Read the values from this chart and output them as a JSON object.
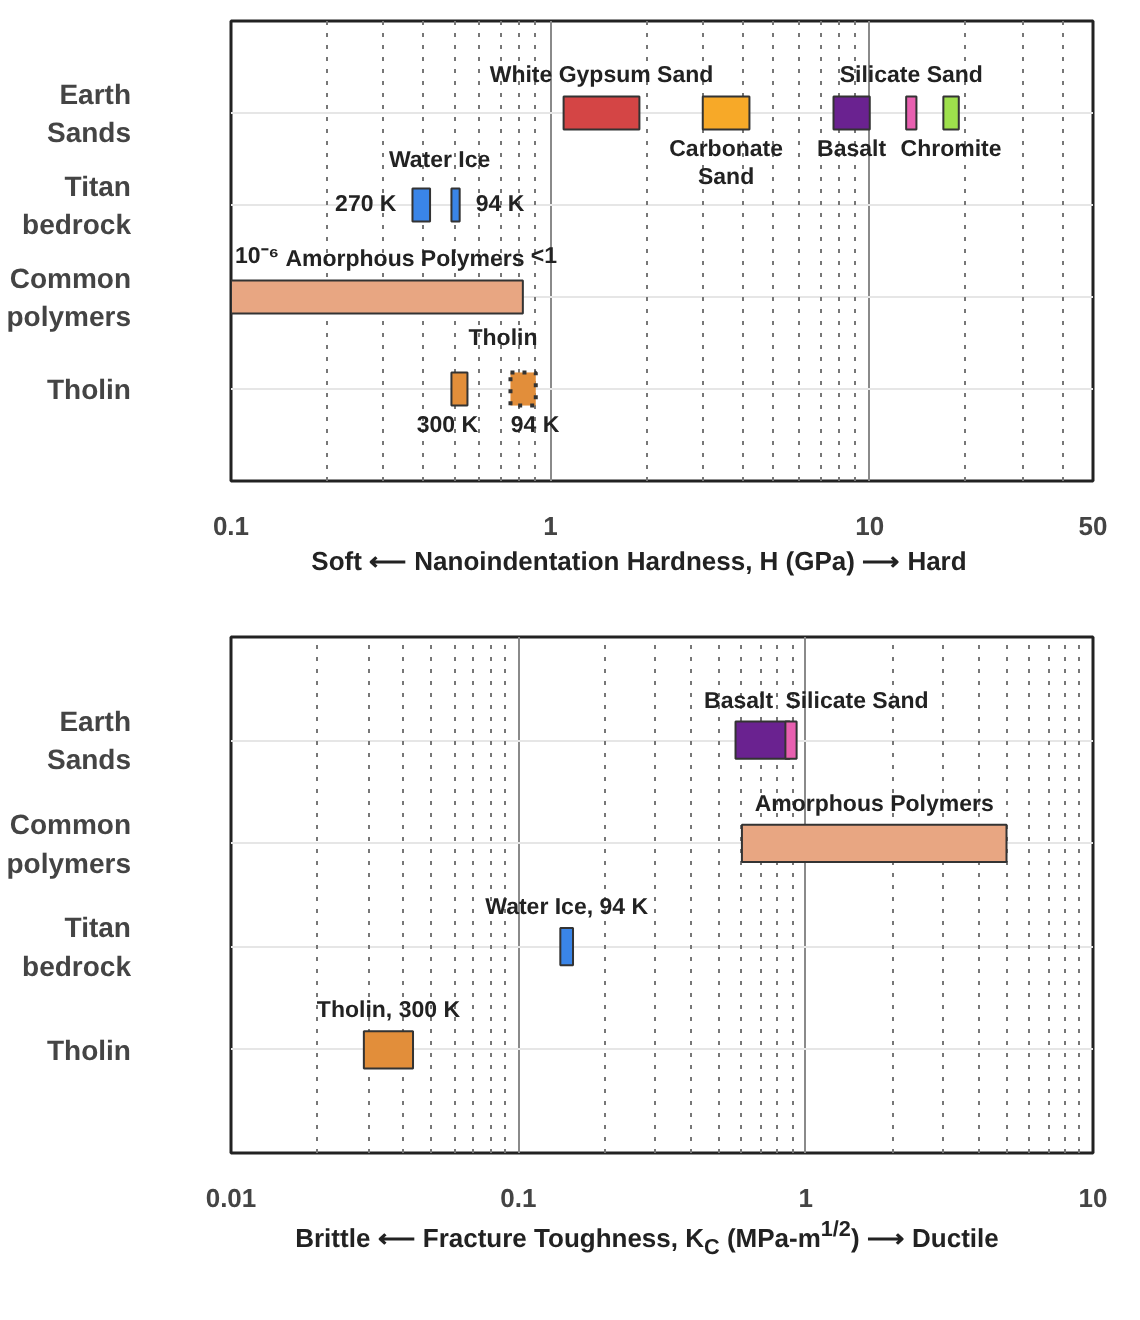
{
  "chart_data": [
    {
      "type": "bar",
      "orientation": "horizontal",
      "categories": [
        "Earth Sands",
        "Titan bedrock",
        "Common polymers",
        "Tholin"
      ],
      "xlabel": "Soft ⟵  Nanoindentation Hardness, H (GPa)  ⟶ Hard",
      "log": "x",
      "grid": true,
      "legend": false,
      "xlim": [
        0.1,
        50
      ],
      "xticks": [
        0.1,
        {
          "value": 0.2,
          "label": null
        },
        {
          "value": 0.3,
          "label": null
        },
        {
          "value": 0.4,
          "label": null
        },
        {
          "value": 0.5,
          "label": null
        },
        {
          "value": 0.6,
          "label": null
        },
        {
          "value": 0.7,
          "label": null
        },
        {
          "value": 0.8,
          "label": null
        },
        {
          "value": 0.9,
          "label": null
        },
        1,
        {
          "value": 2,
          "label": null
        },
        {
          "value": 3,
          "label": null
        },
        {
          "value": 4,
          "label": null
        },
        {
          "value": 5,
          "label": null
        },
        {
          "value": 6,
          "label": null
        },
        {
          "value": 7,
          "label": null
        },
        {
          "value": 8,
          "label": null
        },
        {
          "value": 9,
          "label": null
        },
        10,
        {
          "value": 20,
          "label": null
        },
        {
          "value": 30,
          "label": null
        },
        {
          "value": 40,
          "label": null
        },
        50
      ],
      "series": [
        {
          "name": "White Gypsum Sand",
          "color": "#d44545",
          "base": [
            1.1,
            null,
            null,
            null
          ],
          "values": [
            0.8,
            null,
            null,
            null
          ]
        },
        {
          "name": "Carbonate Sand",
          "color": "#f7a928",
          "base": [
            3.0,
            null,
            null,
            null
          ],
          "values": [
            1.2,
            null,
            null,
            null
          ]
        },
        {
          "name": "Basalt",
          "color": "#6a2290",
          "base": [
            7.7,
            null,
            null,
            null
          ],
          "values": [
            2.3,
            null,
            null,
            null
          ]
        },
        {
          "name": "Silicate Sand",
          "color": "#e860b0",
          "base": [
            13,
            null,
            null,
            null
          ],
          "values": [
            1,
            null,
            null,
            null
          ]
        },
        {
          "name": "Chromite",
          "color": "#9ee04c",
          "base": [
            17,
            null,
            null,
            null
          ],
          "values": [
            2,
            null,
            null,
            null
          ]
        },
        {
          "name": "270 K",
          "color": "#3a85e8",
          "base": [
            null,
            0.37,
            null,
            null
          ],
          "values": [
            null,
            0.05,
            null,
            null
          ]
        },
        {
          "name": "94 K",
          "color": "#3a85e8",
          "base": [
            null,
            0.49,
            null,
            null
          ],
          "values": [
            null,
            0.03,
            null,
            null
          ]
        },
        {
          "name": "Amorphous Polymers",
          "color": "#e8a682",
          "base": [
            null,
            null,
            0.1,
            null
          ],
          "values": [
            null,
            null,
            0.72,
            null
          ]
        },
        {
          "name": "300 K",
          "color": "#e28e3a",
          "base": [
            null,
            null,
            null,
            0.49
          ],
          "values": [
            null,
            null,
            null,
            0.06
          ]
        },
        {
          "name": "94 K",
          "color": "#e28e3a",
          "line_style": "dotted",
          "base": [
            null,
            null,
            null,
            0.75
          ],
          "values": [
            null,
            null,
            null,
            0.15
          ]
        }
      ],
      "annotations": [
        {
          "text": "Water Ice",
          "x": 0.45,
          "y": "Titan bedrock"
        },
        {
          "text": "10⁻⁶",
          "x": 0.1,
          "y": "Common polymers"
        },
        {
          "text": "<1",
          "x": 0.82,
          "y": "Common polymers"
        },
        "Tholin"
      ]
    },
    {
      "type": "bar",
      "orientation": "horizontal",
      "categories": [
        "Earth Sands",
        "Common polymers",
        "Titan bedrock",
        "Tholin"
      ],
      "xlabel": "Brittle ⟵  Fracture Toughness, K$_{C}$ (MPa-m$^{1/2}$)  ⟶ Ductile",
      "log": "x",
      "grid": true,
      "legend": false,
      "xlim": [
        0.01,
        10
      ],
      "xticks": [
        0.01,
        {
          "value": 0.02,
          "label": null
        },
        {
          "value": 0.03,
          "label": null
        },
        {
          "value": 0.04,
          "label": null
        },
        {
          "value": 0.05,
          "label": null
        },
        {
          "value": 0.06,
          "label": null
        },
        {
          "value": 0.07,
          "label": null
        },
        {
          "value": 0.08,
          "label": null
        },
        {
          "value": 0.09,
          "label": null
        },
        0.1,
        {
          "value": 0.2,
          "label": null
        },
        {
          "value": 0.3,
          "label": null
        },
        {
          "value": 0.4,
          "label": null
        },
        {
          "value": 0.5,
          "label": null
        },
        {
          "value": 0.6,
          "label": null
        },
        {
          "value": 0.7,
          "label": null
        },
        {
          "value": 0.8,
          "label": null
        },
        {
          "value": 0.9,
          "label": null
        },
        1,
        {
          "value": 2,
          "label": null
        },
        {
          "value": 3,
          "label": null
        },
        {
          "value": 4,
          "label": null
        },
        {
          "value": 5,
          "label": null
        },
        {
          "value": 6,
          "label": null
        },
        {
          "value": 7,
          "label": null
        },
        {
          "value": 8,
          "label": null
        },
        {
          "value": 9,
          "label": null
        },
        10
      ],
      "series": [
        {
          "name": "Basalt",
          "color": "#6a2290",
          "base": [
            0.57,
            null,
            null,
            null
          ],
          "values": [
            0.31,
            null,
            null,
            null
          ]
        },
        {
          "name": "Silicate Sand",
          "color": "#e860b0",
          "base": [
            0.85,
            null,
            null,
            null
          ],
          "values": [
            0.08,
            null,
            null,
            null
          ]
        },
        {
          "name": "Amorphous Polymers",
          "color": "#e8a682",
          "base": [
            null,
            0.6,
            null,
            null
          ],
          "values": [
            null,
            4.4,
            null,
            null
          ]
        },
        {
          "name": "Water Ice, 94 K",
          "color": "#3a85e8",
          "base": [
            null,
            null,
            0.14,
            null
          ],
          "values": [
            null,
            null,
            0.015,
            null
          ]
        },
        {
          "name": "Tholin, 300 K",
          "color": "#e28e3a",
          "base": [
            null,
            null,
            null,
            0.029
          ],
          "values": [
            null,
            null,
            null,
            0.014
          ]
        }
      ]
    }
  ]
}
